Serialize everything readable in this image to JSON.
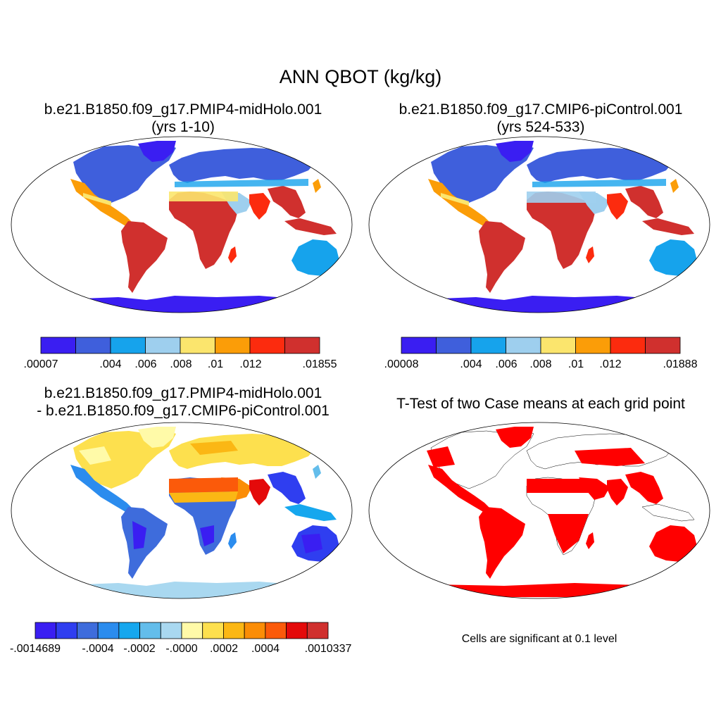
{
  "figure": {
    "title": "ANN QBOT (kg/kg)"
  },
  "panels": [
    {
      "id": "midholo",
      "title_line1": "b.e21.B1850.f09_g17.PMIP4-midHolo.001",
      "title_line2": "(yrs 1-10)",
      "colorbar": {
        "colors": [
          "#3a1ef2",
          "#3f5fdc",
          "#16a3ec",
          "#9ecfee",
          "#fbe56d",
          "#fb9d08",
          "#fc2b0e",
          "#d0302e"
        ],
        "tick_labels": [
          ".00007",
          ".004",
          ".006",
          ".008",
          ".01",
          ".012",
          ".01855"
        ]
      }
    },
    {
      "id": "picontrol",
      "title_line1": "b.e21.B1850.f09_g17.CMIP6-piControl.001",
      "title_line2": "(yrs 524-533)",
      "colorbar": {
        "colors": [
          "#3a1ef2",
          "#3f5fdc",
          "#16a3ec",
          "#9ecfee",
          "#fbe56d",
          "#fb9d08",
          "#fc2b0e",
          "#d0302e"
        ],
        "tick_labels": [
          ".00008",
          ".004",
          ".006",
          ".008",
          ".01",
          ".012",
          ".01888"
        ]
      }
    },
    {
      "id": "difference",
      "title_line1": "b.e21.B1850.f09_g17.PMIP4-midHolo.001",
      "title_line2": "- b.e21.B1850.f09_g17.CMIP6-piControl.001",
      "colorbar": {
        "colors": [
          "#3a1ef2",
          "#2f3ef0",
          "#3e6cdc",
          "#2b8cee",
          "#16a7ee",
          "#63bdeb",
          "#a9d8f0",
          "#fffaa8",
          "#fde04e",
          "#fbb714",
          "#fb8d06",
          "#fb5a0a",
          "#e40a0a",
          "#d0302e"
        ],
        "tick_labels": [
          "-.0014689",
          "-.0004",
          "-.0002",
          "-.0000",
          ".0002",
          ".0004",
          ".0010337"
        ]
      }
    },
    {
      "id": "ttest",
      "title_line1": "T-Test of two Case means at each grid point",
      "note": "Cells are significant at 0.1 level",
      "significant_color": "#ff0000"
    }
  ]
}
